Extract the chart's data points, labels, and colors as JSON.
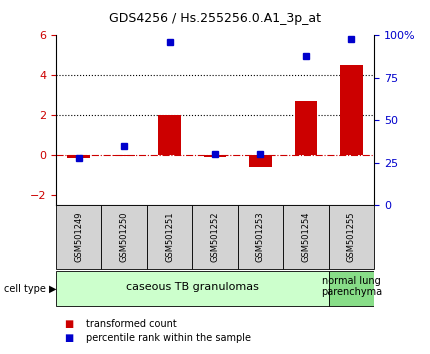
{
  "title": "GDS4256 / Hs.255256.0.A1_3p_at",
  "samples": [
    "GSM501249",
    "GSM501250",
    "GSM501251",
    "GSM501252",
    "GSM501253",
    "GSM501254",
    "GSM501255"
  ],
  "transformed_count": [
    -0.15,
    -0.05,
    2.0,
    -0.1,
    -0.6,
    2.7,
    4.5
  ],
  "percentile_rank": [
    28,
    35,
    96,
    30,
    30,
    88,
    98
  ],
  "bar_color": "#cc0000",
  "dot_color": "#0000cc",
  "ylim_left": [
    -2.5,
    6.0
  ],
  "ylim_right": [
    0,
    100
  ],
  "yticks_left": [
    -2,
    0,
    2,
    4,
    6
  ],
  "yticks_right": [
    0,
    25,
    50,
    75,
    100
  ],
  "yticklabels_right": [
    "0",
    "25",
    "50",
    "75",
    "100%"
  ],
  "hlines": [
    0,
    2,
    4
  ],
  "hline_styles": [
    "dashdot",
    "dotted",
    "dotted"
  ],
  "hline_colors": [
    "#cc0000",
    "#000000",
    "#000000"
  ],
  "cell_types": [
    {
      "label": "caseous TB granulomas",
      "samples": [
        0,
        1,
        2,
        3,
        4,
        5
      ],
      "color": "#ccffcc"
    },
    {
      "label": "normal lung\nparenchyma",
      "samples": [
        6
      ],
      "color": "#88dd88"
    }
  ],
  "legend_items": [
    {
      "color": "#cc0000",
      "label": "transformed count"
    },
    {
      "color": "#0000cc",
      "label": "percentile rank within the sample"
    }
  ],
  "bg_color": "#ffffff",
  "tick_label_color_left": "#cc0000",
  "tick_label_color_right": "#0000cc"
}
